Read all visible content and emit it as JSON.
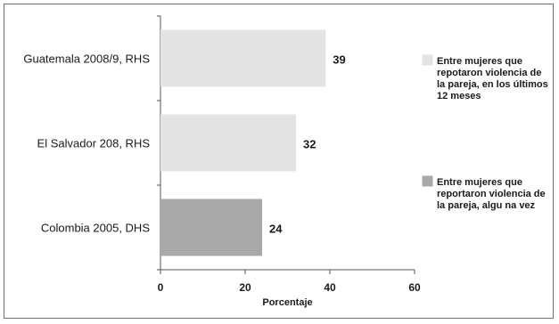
{
  "chart_data": {
    "type": "bar",
    "orientation": "horizontal",
    "categories": [
      "Guatemala 2008/9, RHS",
      "El Salvador 208, RHS",
      "Colombia 2005, DHS"
    ],
    "series": [
      {
        "name": "Entre mujeres que repotaron violencia de la pareja, en los últimos 12 meses",
        "legend_lines": [
          "Entre mujeres que",
          "repotaron violencia de",
          "la pareja, en los últimos",
          "12 meses"
        ],
        "color": "#e3e3e3",
        "values": [
          39,
          32,
          null
        ]
      },
      {
        "name": "Entre mujeres que reportaron violencia de la pareja, alguna vez",
        "legend_lines": [
          "Entre mujeres que",
          "reportaron violencia de",
          "la pareja, algu na vez"
        ],
        "color": "#a9a9a9",
        "values": [
          null,
          null,
          24
        ]
      }
    ],
    "data_labels": [
      "39",
      "32",
      "24"
    ],
    "xlabel": "Porcentaje",
    "ylabel": "",
    "title": "",
    "xlim": [
      0,
      60
    ],
    "xticks": [
      0,
      20,
      40,
      60
    ],
    "grid": false,
    "legend_position": "right"
  }
}
